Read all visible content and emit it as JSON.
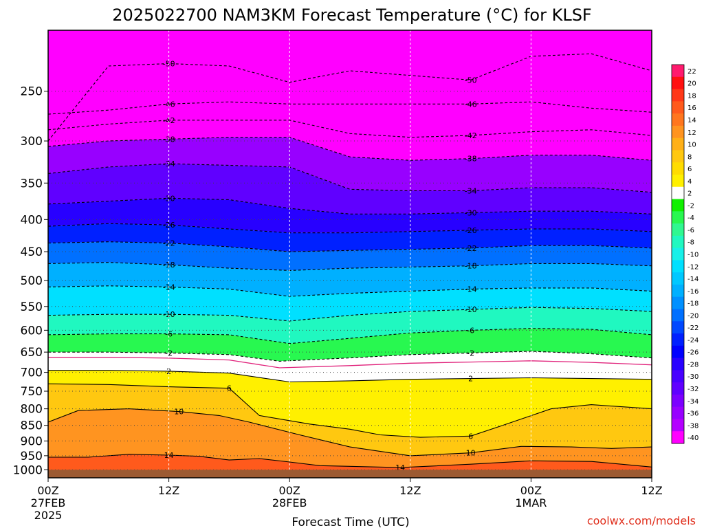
{
  "chart_data": {
    "type": "heatmap",
    "title": "2025022700 NAM3KM Forecast Temperature (°C) for KLSF",
    "xlabel": "Forecast Time (UTC)",
    "credit": "coolwx.com/models",
    "x_ticks": [
      {
        "hour": 0,
        "label": "00Z",
        "date": "27FEB",
        "year": "2025"
      },
      {
        "hour": 12,
        "label": "12Z"
      },
      {
        "hour": 24,
        "label": "00Z",
        "date": "28FEB"
      },
      {
        "hour": 36,
        "label": "12Z"
      },
      {
        "hour": 48,
        "label": "00Z",
        "date": "1MAR"
      },
      {
        "hour": 60,
        "label": "12Z"
      }
    ],
    "xlim": [
      0,
      60
    ],
    "y_scale": "log-pressure",
    "ylim": [
      1030,
      200
    ],
    "y_ticks": [
      250,
      300,
      350,
      400,
      450,
      500,
      550,
      600,
      650,
      700,
      750,
      800,
      850,
      900,
      950,
      1000
    ],
    "ground_pressure": 1000,
    "colorbar": {
      "levels": [
        22,
        20,
        18,
        16,
        14,
        12,
        10,
        8,
        6,
        4,
        2,
        -2,
        -4,
        -6,
        -8,
        -10,
        -12,
        -14,
        -16,
        -18,
        -20,
        -22,
        -24,
        -26,
        -28,
        -30,
        -32,
        -34,
        -36,
        -38,
        -40
      ],
      "colors": [
        "#ff1a6e",
        "#ff1010",
        "#ff3818",
        "#ff5a1c",
        "#ff761e",
        "#ff9420",
        "#ffb018",
        "#ffc810",
        "#ffdc00",
        "#fff000",
        "#ffffff",
        "#10f000",
        "#28f850",
        "#30f890",
        "#20f8c0",
        "#18f0e8",
        "#00e0ff",
        "#00c8ff",
        "#00b0ff",
        "#0090ff",
        "#0070ff",
        "#0048ff",
        "#0020ff",
        "#0000ff",
        "#2800ff",
        "#4800ff",
        "#6000ff",
        "#7c00ff",
        "#9800ff",
        "#b400ff",
        "#ff00ff"
      ]
    },
    "contour_lines": [
      {
        "label": "-50",
        "dashed": true,
        "points": [
          [
            0,
            300
          ],
          [
            6,
            228
          ],
          [
            12,
            226
          ],
          [
            18,
            228
          ],
          [
            24,
            242
          ],
          [
            30,
            232
          ],
          [
            36,
            236
          ],
          [
            42,
            240
          ],
          [
            48,
            220
          ],
          [
            54,
            218
          ],
          [
            60,
            232
          ]
        ]
      },
      {
        "label": "-46",
        "dashed": true,
        "points": [
          [
            0,
            272
          ],
          [
            6,
            268
          ],
          [
            12,
            262
          ],
          [
            18,
            260
          ],
          [
            24,
            262
          ],
          [
            30,
            262
          ],
          [
            36,
            262
          ],
          [
            42,
            262
          ],
          [
            48,
            260
          ],
          [
            54,
            266
          ],
          [
            60,
            270
          ]
        ]
      },
      {
        "label": "-42",
        "dashed": true,
        "points": [
          [
            0,
            288
          ],
          [
            6,
            282
          ],
          [
            12,
            278
          ],
          [
            18,
            278
          ],
          [
            24,
            278
          ],
          [
            30,
            292
          ],
          [
            36,
            296
          ],
          [
            42,
            294
          ],
          [
            48,
            290
          ],
          [
            54,
            288
          ],
          [
            60,
            294
          ]
        ]
      },
      {
        "label": "-38",
        "dashed": true,
        "points": [
          [
            0,
            306
          ],
          [
            6,
            300
          ],
          [
            12,
            298
          ],
          [
            18,
            296
          ],
          [
            24,
            296
          ],
          [
            30,
            318
          ],
          [
            36,
            322
          ],
          [
            42,
            320
          ],
          [
            48,
            316
          ],
          [
            54,
            316
          ],
          [
            60,
            322
          ]
        ]
      },
      {
        "label": "-34",
        "dashed": true,
        "points": [
          [
            0,
            338
          ],
          [
            6,
            330
          ],
          [
            12,
            326
          ],
          [
            18,
            328
          ],
          [
            24,
            330
          ],
          [
            30,
            358
          ],
          [
            36,
            360
          ],
          [
            42,
            360
          ],
          [
            48,
            356
          ],
          [
            54,
            356
          ],
          [
            60,
            362
          ]
        ]
      },
      {
        "label": "-30",
        "dashed": true,
        "points": [
          [
            0,
            378
          ],
          [
            6,
            374
          ],
          [
            12,
            370
          ],
          [
            18,
            372
          ],
          [
            24,
            384
          ],
          [
            30,
            392
          ],
          [
            36,
            392
          ],
          [
            42,
            390
          ],
          [
            48,
            388
          ],
          [
            54,
            388
          ],
          [
            60,
            392
          ]
        ]
      },
      {
        "label": "-26",
        "dashed": true,
        "points": [
          [
            0,
            410
          ],
          [
            6,
            406
          ],
          [
            12,
            408
          ],
          [
            18,
            414
          ],
          [
            24,
            420
          ],
          [
            30,
            420
          ],
          [
            36,
            418
          ],
          [
            42,
            416
          ],
          [
            48,
            414
          ],
          [
            54,
            414
          ],
          [
            60,
            418
          ]
        ]
      },
      {
        "label": "-22",
        "dashed": true,
        "points": [
          [
            0,
            436
          ],
          [
            6,
            434
          ],
          [
            12,
            436
          ],
          [
            18,
            442
          ],
          [
            24,
            450
          ],
          [
            30,
            448
          ],
          [
            36,
            446
          ],
          [
            42,
            444
          ],
          [
            48,
            440
          ],
          [
            54,
            440
          ],
          [
            60,
            444
          ]
        ]
      },
      {
        "label": "-18",
        "dashed": true,
        "points": [
          [
            0,
            470
          ],
          [
            6,
            468
          ],
          [
            12,
            472
          ],
          [
            18,
            478
          ],
          [
            24,
            482
          ],
          [
            30,
            478
          ],
          [
            36,
            476
          ],
          [
            42,
            474
          ],
          [
            48,
            470
          ],
          [
            54,
            470
          ],
          [
            60,
            474
          ]
        ]
      },
      {
        "label": "-14",
        "dashed": true,
        "points": [
          [
            0,
            512
          ],
          [
            6,
            510
          ],
          [
            12,
            512
          ],
          [
            18,
            516
          ],
          [
            24,
            530
          ],
          [
            30,
            524
          ],
          [
            36,
            520
          ],
          [
            42,
            516
          ],
          [
            48,
            514
          ],
          [
            54,
            514
          ],
          [
            60,
            520
          ]
        ]
      },
      {
        "label": "-10",
        "dashed": true,
        "points": [
          [
            0,
            568
          ],
          [
            6,
            566
          ],
          [
            12,
            566
          ],
          [
            18,
            568
          ],
          [
            24,
            580
          ],
          [
            30,
            568
          ],
          [
            36,
            560
          ],
          [
            42,
            556
          ],
          [
            48,
            552
          ],
          [
            54,
            554
          ],
          [
            60,
            560
          ]
        ]
      },
      {
        "label": "-6",
        "dashed": true,
        "points": [
          [
            0,
            610
          ],
          [
            6,
            608
          ],
          [
            12,
            608
          ],
          [
            18,
            610
          ],
          [
            24,
            630
          ],
          [
            30,
            618
          ],
          [
            36,
            606
          ],
          [
            42,
            600
          ],
          [
            48,
            596
          ],
          [
            54,
            598
          ],
          [
            60,
            610
          ]
        ]
      },
      {
        "label": "-2",
        "dashed": true,
        "points": [
          [
            0,
            650
          ],
          [
            6,
            650
          ],
          [
            12,
            652
          ],
          [
            18,
            656
          ],
          [
            23,
            672
          ],
          [
            30,
            664
          ],
          [
            36,
            656
          ],
          [
            42,
            652
          ],
          [
            48,
            648
          ],
          [
            54,
            654
          ],
          [
            60,
            664
          ]
        ]
      },
      {
        "label": "2",
        "dashed": false,
        "points": [
          [
            0,
            695
          ],
          [
            6,
            695
          ],
          [
            12,
            697
          ],
          [
            18,
            702
          ],
          [
            24,
            725
          ],
          [
            30,
            722
          ],
          [
            36,
            718
          ],
          [
            42,
            716
          ],
          [
            48,
            714
          ],
          [
            54,
            716
          ],
          [
            60,
            718
          ]
        ]
      },
      {
        "label": "6",
        "dashed": false,
        "points": [
          [
            0,
            730
          ],
          [
            6,
            732
          ],
          [
            12,
            738
          ],
          [
            18,
            742
          ],
          [
            21,
            820
          ],
          [
            26,
            846
          ],
          [
            30,
            862
          ],
          [
            33,
            880
          ],
          [
            37,
            888
          ],
          [
            42,
            884
          ],
          [
            45,
            852
          ],
          [
            50,
            800
          ],
          [
            54,
            788
          ],
          [
            60,
            800
          ]
        ]
      },
      {
        "label": "10",
        "dashed": false,
        "points": [
          [
            0,
            840
          ],
          [
            3,
            805
          ],
          [
            8,
            800
          ],
          [
            13,
            808
          ],
          [
            17,
            820
          ],
          [
            20,
            840
          ],
          [
            25,
            880
          ],
          [
            30,
            920
          ],
          [
            36,
            950
          ],
          [
            42,
            940
          ],
          [
            47,
            918
          ],
          [
            52,
            920
          ],
          [
            56,
            925
          ],
          [
            60,
            920
          ]
        ]
      },
      {
        "label": "14",
        "dashed": false,
        "points": [
          [
            0,
            955
          ],
          [
            4,
            955
          ],
          [
            8,
            945
          ],
          [
            12,
            948
          ],
          [
            15,
            952
          ],
          [
            18,
            965
          ],
          [
            21,
            960
          ],
          [
            24,
            972
          ],
          [
            27,
            985
          ],
          [
            35,
            992
          ],
          [
            42,
            980
          ],
          [
            48,
            968
          ],
          [
            54,
            970
          ],
          [
            60,
            990
          ]
        ]
      }
    ]
  }
}
